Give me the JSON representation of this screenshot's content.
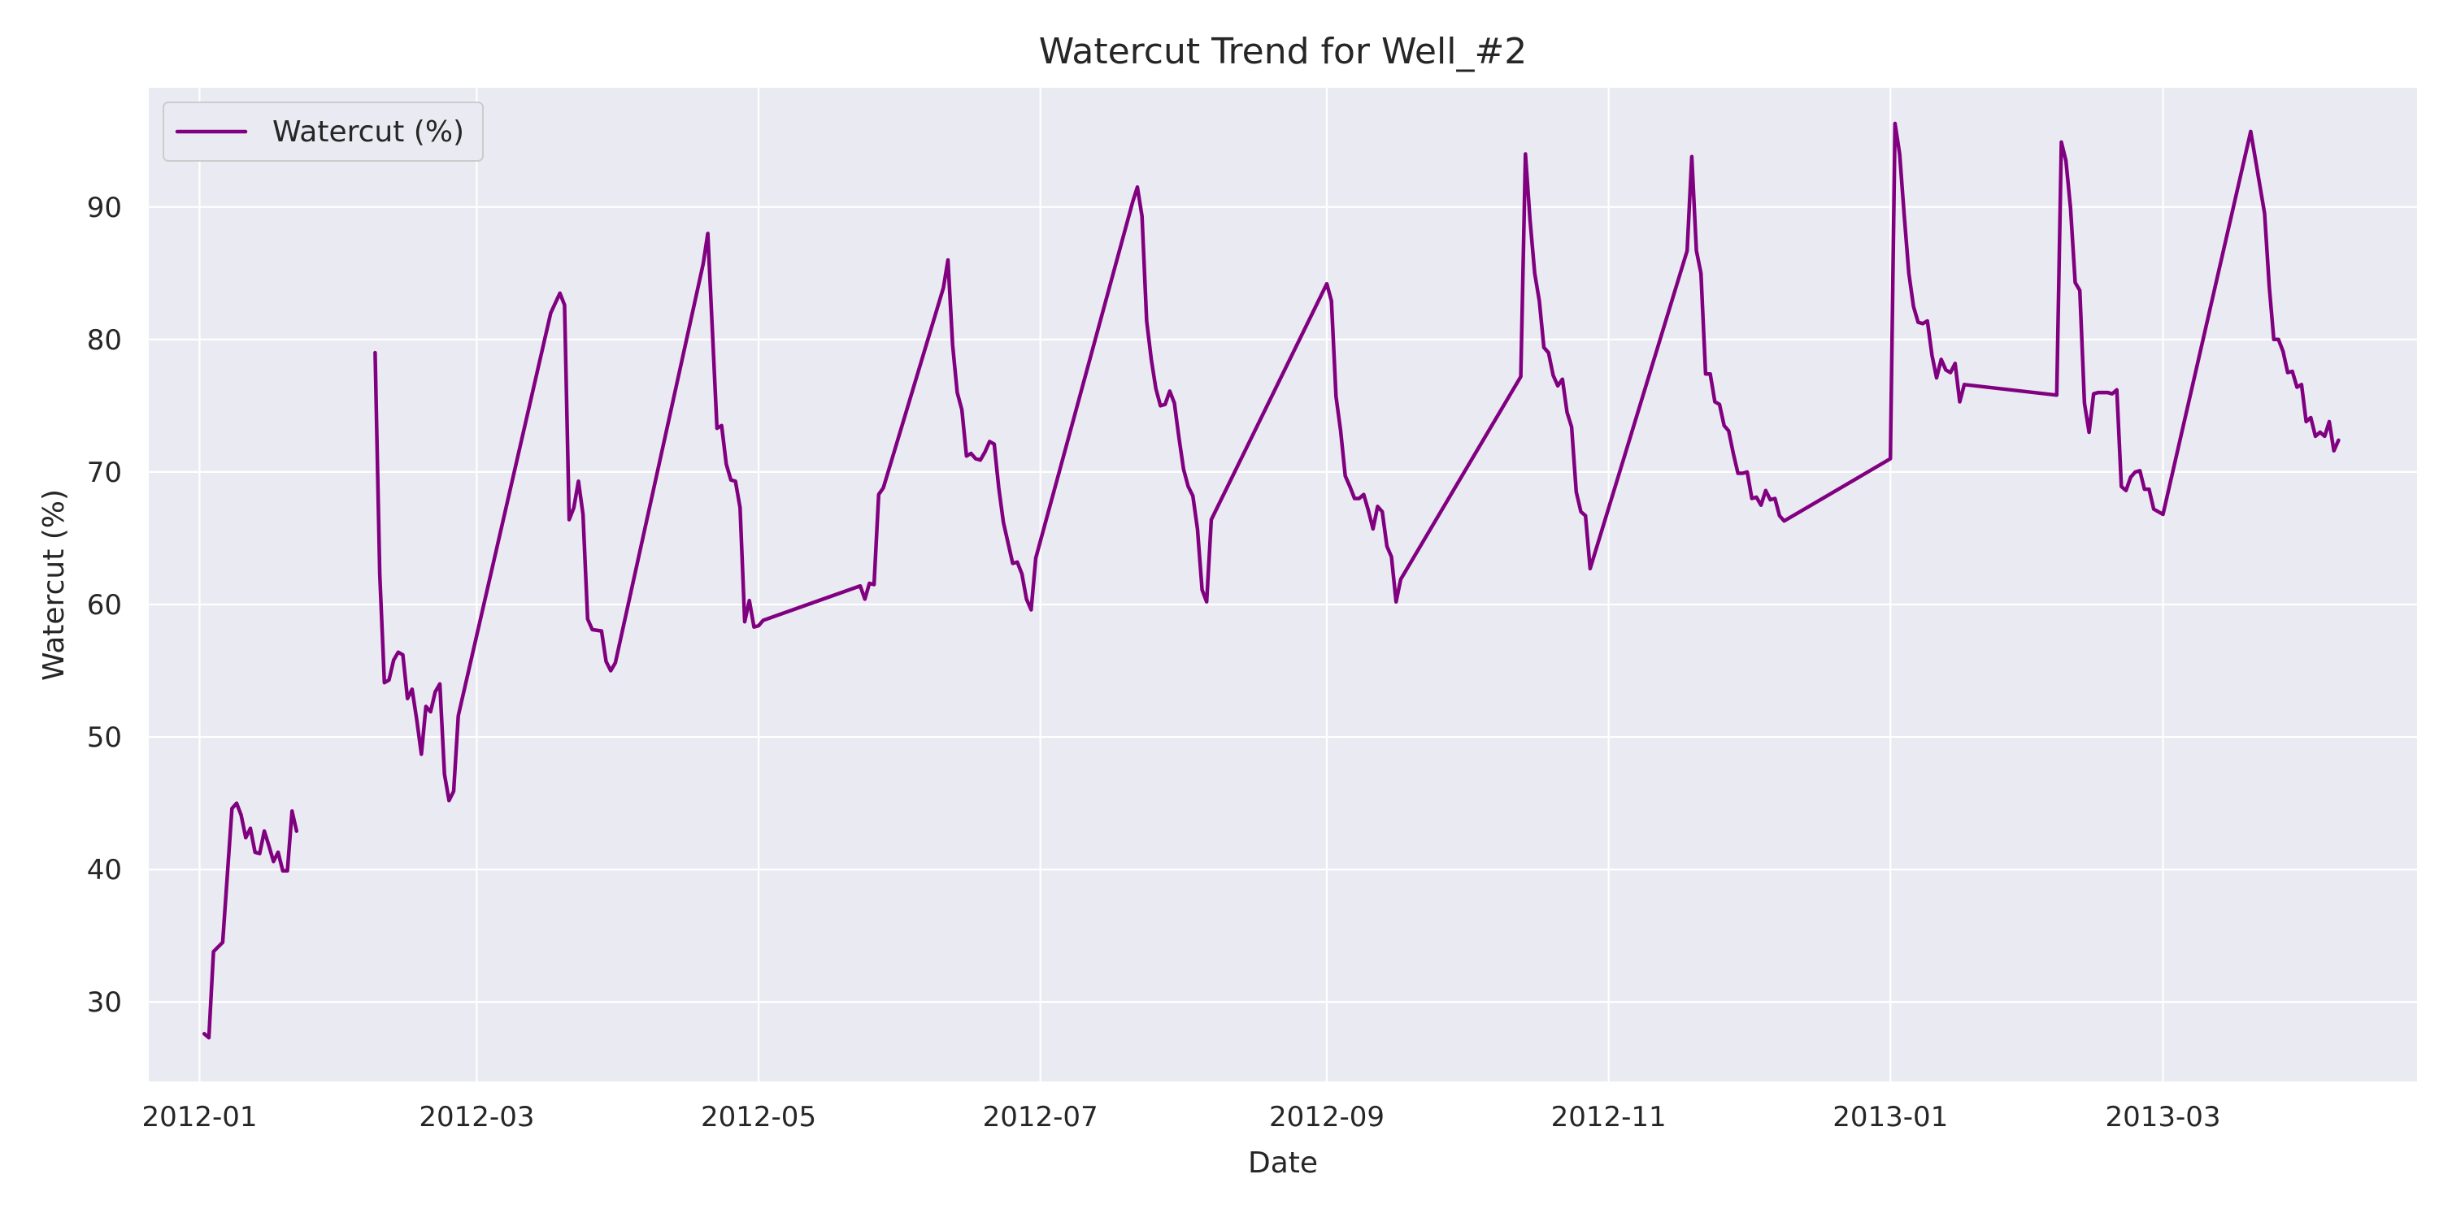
{
  "chart_data": {
    "type": "line",
    "title": "Watercut Trend for Well_#2",
    "xlabel": "Date",
    "ylabel": "Watercut (%)",
    "xlim": [
      "2011-12-21",
      "2013-04-25"
    ],
    "ylim": [
      24,
      99
    ],
    "x_ticks": [
      "2012-01-01",
      "2012-03-01",
      "2012-05-01",
      "2012-07-01",
      "2012-09-01",
      "2012-11-01",
      "2013-01-01",
      "2013-03-01"
    ],
    "x_tick_labels": [
      "2012-01",
      "2012-03",
      "2012-05",
      "2012-07",
      "2012-09",
      "2012-11",
      "2013-01",
      "2013-03"
    ],
    "y_ticks": [
      30,
      40,
      50,
      60,
      70,
      80,
      90
    ],
    "grid": true,
    "legend": "top-left",
    "colors": {
      "line": "#800080",
      "plot_bg": "#EAEAF2",
      "grid": "#FFFFFF"
    },
    "series": [
      {
        "name": "Watercut (%)",
        "segments": [
          [
            [
              "2012-01-02",
              27.6
            ],
            [
              "2012-01-03",
              27.3
            ],
            [
              "2012-01-04",
              33.8
            ],
            [
              "2012-01-06",
              34.5
            ],
            [
              "2012-01-08",
              44.6
            ],
            [
              "2012-01-09",
              45.0
            ],
            [
              "2012-01-10",
              44.1
            ],
            [
              "2012-01-11",
              42.4
            ],
            [
              "2012-01-12",
              43.1
            ],
            [
              "2012-01-13",
              41.3
            ],
            [
              "2012-01-14",
              41.2
            ],
            [
              "2012-01-15",
              42.9
            ],
            [
              "2012-01-16",
              41.8
            ],
            [
              "2012-01-17",
              40.6
            ],
            [
              "2012-01-18",
              41.3
            ],
            [
              "2012-01-19",
              39.9
            ],
            [
              "2012-01-20",
              39.9
            ],
            [
              "2012-01-21",
              44.4
            ],
            [
              "2012-01-22",
              42.9
            ]
          ],
          [
            [
              "2012-02-08",
              79.0
            ],
            [
              "2012-02-09",
              62.3
            ],
            [
              "2012-02-10",
              54.1
            ],
            [
              "2012-02-11",
              54.3
            ],
            [
              "2012-02-12",
              55.8
            ],
            [
              "2012-02-13",
              56.4
            ],
            [
              "2012-02-14",
              56.2
            ],
            [
              "2012-02-15",
              52.9
            ],
            [
              "2012-02-16",
              53.6
            ],
            [
              "2012-02-17",
              51.3
            ],
            [
              "2012-02-18",
              48.7
            ],
            [
              "2012-02-19",
              52.3
            ],
            [
              "2012-02-20",
              51.9
            ],
            [
              "2012-02-21",
              53.4
            ],
            [
              "2012-02-22",
              54.0
            ],
            [
              "2012-02-23",
              47.2
            ],
            [
              "2012-02-24",
              45.2
            ],
            [
              "2012-02-25",
              45.9
            ],
            [
              "2012-02-26",
              51.6
            ],
            [
              "2012-03-17",
              82.0
            ],
            [
              "2012-03-19",
              83.5
            ],
            [
              "2012-03-20",
              82.6
            ],
            [
              "2012-03-21",
              66.4
            ],
            [
              "2012-03-22",
              67.3
            ],
            [
              "2012-03-23",
              69.3
            ],
            [
              "2012-03-24",
              66.8
            ],
            [
              "2012-03-25",
              58.9
            ],
            [
              "2012-03-26",
              58.1
            ],
            [
              "2012-03-28",
              58.0
            ],
            [
              "2012-03-29",
              55.7
            ],
            [
              "2012-03-30",
              55.0
            ],
            [
              "2012-03-31",
              55.6
            ],
            [
              "2012-04-19",
              85.7
            ],
            [
              "2012-04-20",
              88.0
            ],
            [
              "2012-04-22",
              73.3
            ],
            [
              "2012-04-23",
              73.5
            ],
            [
              "2012-04-24",
              70.6
            ],
            [
              "2012-04-25",
              69.4
            ],
            [
              "2012-04-26",
              69.3
            ],
            [
              "2012-04-27",
              67.3
            ],
            [
              "2012-04-28",
              58.7
            ],
            [
              "2012-04-29",
              60.3
            ],
            [
              "2012-04-30",
              58.3
            ],
            [
              "2012-05-01",
              58.4
            ],
            [
              "2012-05-02",
              58.8
            ],
            [
              "2012-05-23",
              61.4
            ],
            [
              "2012-05-24",
              60.4
            ],
            [
              "2012-05-25",
              61.6
            ],
            [
              "2012-05-26",
              61.5
            ],
            [
              "2012-05-27",
              68.3
            ],
            [
              "2012-05-28",
              68.8
            ],
            [
              "2012-06-10",
              83.9
            ],
            [
              "2012-06-11",
              86.0
            ],
            [
              "2012-06-12",
              79.6
            ],
            [
              "2012-06-13",
              76.0
            ],
            [
              "2012-06-14",
              74.7
            ],
            [
              "2012-06-15",
              71.2
            ],
            [
              "2012-06-16",
              71.4
            ],
            [
              "2012-06-17",
              71.0
            ],
            [
              "2012-06-18",
              70.9
            ],
            [
              "2012-06-19",
              71.5
            ],
            [
              "2012-06-20",
              72.3
            ],
            [
              "2012-06-21",
              72.1
            ],
            [
              "2012-06-22",
              68.8
            ],
            [
              "2012-06-23",
              66.2
            ],
            [
              "2012-06-25",
              63.1
            ],
            [
              "2012-06-26",
              63.2
            ],
            [
              "2012-06-27",
              62.3
            ],
            [
              "2012-06-28",
              60.4
            ],
            [
              "2012-06-29",
              59.6
            ],
            [
              "2012-06-30",
              63.5
            ],
            [
              "2012-07-21",
              90.4
            ],
            [
              "2012-07-22",
              91.5
            ],
            [
              "2012-07-23",
              89.3
            ],
            [
              "2012-07-24",
              81.4
            ],
            [
              "2012-07-25",
              78.5
            ],
            [
              "2012-07-26",
              76.3
            ],
            [
              "2012-07-27",
              75.0
            ],
            [
              "2012-07-28",
              75.1
            ],
            [
              "2012-07-29",
              76.1
            ],
            [
              "2012-07-30",
              75.2
            ],
            [
              "2012-07-31",
              72.6
            ],
            [
              "2012-08-01",
              70.2
            ],
            [
              "2012-08-02",
              68.9
            ],
            [
              "2012-08-03",
              68.2
            ],
            [
              "2012-08-04",
              65.7
            ],
            [
              "2012-08-05",
              61.1
            ],
            [
              "2012-08-06",
              60.2
            ],
            [
              "2012-08-07",
              66.4
            ],
            [
              "2012-09-01",
              84.2
            ],
            [
              "2012-09-02",
              82.9
            ],
            [
              "2012-09-03",
              75.7
            ],
            [
              "2012-09-04",
              73.1
            ],
            [
              "2012-09-05",
              69.7
            ],
            [
              "2012-09-06",
              68.9
            ],
            [
              "2012-09-07",
              68.0
            ],
            [
              "2012-09-08",
              68.0
            ],
            [
              "2012-09-09",
              68.3
            ],
            [
              "2012-09-10",
              67.1
            ],
            [
              "2012-09-11",
              65.7
            ],
            [
              "2012-09-12",
              67.4
            ],
            [
              "2012-09-13",
              67.0
            ],
            [
              "2012-09-14",
              64.4
            ],
            [
              "2012-09-15",
              63.6
            ],
            [
              "2012-09-16",
              60.2
            ],
            [
              "2012-09-17",
              61.9
            ],
            [
              "2012-10-13",
              77.2
            ],
            [
              "2012-10-14",
              94.0
            ],
            [
              "2012-10-15",
              89.0
            ],
            [
              "2012-10-16",
              85.0
            ],
            [
              "2012-10-17",
              82.9
            ],
            [
              "2012-10-18",
              79.4
            ],
            [
              "2012-10-19",
              79.0
            ],
            [
              "2012-10-20",
              77.3
            ],
            [
              "2012-10-21",
              76.5
            ],
            [
              "2012-10-22",
              77.0
            ],
            [
              "2012-10-23",
              74.5
            ],
            [
              "2012-10-24",
              73.4
            ],
            [
              "2012-10-25",
              68.5
            ],
            [
              "2012-10-26",
              67.0
            ],
            [
              "2012-10-27",
              66.7
            ],
            [
              "2012-10-28",
              62.7
            ],
            [
              "2012-11-18",
              86.7
            ],
            [
              "2012-11-19",
              93.8
            ],
            [
              "2012-11-20",
              86.7
            ],
            [
              "2012-11-21",
              85.0
            ],
            [
              "2012-11-22",
              77.4
            ],
            [
              "2012-11-23",
              77.4
            ],
            [
              "2012-11-24",
              75.3
            ],
            [
              "2012-11-25",
              75.1
            ],
            [
              "2012-11-26",
              73.5
            ],
            [
              "2012-11-27",
              73.1
            ],
            [
              "2012-11-28",
              71.4
            ],
            [
              "2012-11-29",
              69.9
            ],
            [
              "2012-11-30",
              69.9
            ],
            [
              "2012-12-01",
              70.0
            ],
            [
              "2012-12-02",
              68.0
            ],
            [
              "2012-12-03",
              68.1
            ],
            [
              "2012-12-04",
              67.5
            ],
            [
              "2012-12-05",
              68.6
            ],
            [
              "2012-12-06",
              67.9
            ],
            [
              "2012-12-07",
              68.0
            ],
            [
              "2012-12-08",
              66.7
            ],
            [
              "2012-12-09",
              66.3
            ],
            [
              "2013-01-01",
              71.0
            ],
            [
              "2013-01-02",
              96.3
            ],
            [
              "2013-01-03",
              94.0
            ],
            [
              "2013-01-04",
              89.3
            ],
            [
              "2013-01-05",
              85.0
            ],
            [
              "2013-01-06",
              82.5
            ],
            [
              "2013-01-07",
              81.3
            ],
            [
              "2013-01-08",
              81.2
            ],
            [
              "2013-01-09",
              81.4
            ],
            [
              "2013-01-10",
              78.8
            ],
            [
              "2013-01-11",
              77.1
            ],
            [
              "2013-01-12",
              78.5
            ],
            [
              "2013-01-13",
              77.7
            ],
            [
              "2013-01-14",
              77.5
            ],
            [
              "2013-01-15",
              78.2
            ],
            [
              "2013-01-16",
              75.3
            ],
            [
              "2013-01-17",
              76.6
            ],
            [
              "2013-02-06",
              75.8
            ],
            [
              "2013-02-07",
              94.9
            ],
            [
              "2013-02-08",
              93.5
            ],
            [
              "2013-02-09",
              89.9
            ],
            [
              "2013-02-10",
              84.3
            ],
            [
              "2013-02-11",
              83.7
            ],
            [
              "2013-02-12",
              75.2
            ],
            [
              "2013-02-13",
              73.0
            ],
            [
              "2013-02-14",
              75.9
            ],
            [
              "2013-02-15",
              76.0
            ],
            [
              "2013-02-16",
              76.0
            ],
            [
              "2013-02-17",
              76.0
            ],
            [
              "2013-02-18",
              75.9
            ],
            [
              "2013-02-19",
              76.2
            ],
            [
              "2013-02-20",
              68.9
            ],
            [
              "2013-02-21",
              68.6
            ],
            [
              "2013-02-22",
              69.6
            ],
            [
              "2013-02-23",
              70.0
            ],
            [
              "2013-02-24",
              70.1
            ],
            [
              "2013-02-25",
              68.7
            ],
            [
              "2013-02-26",
              68.7
            ],
            [
              "2013-02-27",
              67.2
            ],
            [
              "2013-02-28",
              67.0
            ],
            [
              "2013-03-01",
              66.8
            ],
            [
              "2013-03-20",
              95.7
            ],
            [
              "2013-03-23",
              89.5
            ],
            [
              "2013-03-24",
              84.0
            ],
            [
              "2013-03-25",
              80.0
            ],
            [
              "2013-03-26",
              80.0
            ],
            [
              "2013-03-27",
              79.1
            ],
            [
              "2013-03-28",
              77.5
            ],
            [
              "2013-03-29",
              77.6
            ],
            [
              "2013-03-30",
              76.4
            ],
            [
              "2013-03-31",
              76.6
            ],
            [
              "2013-04-01",
              73.8
            ],
            [
              "2013-04-02",
              74.1
            ],
            [
              "2013-04-03",
              72.7
            ],
            [
              "2013-04-04",
              73.0
            ],
            [
              "2013-04-05",
              72.7
            ],
            [
              "2013-04-06",
              73.8
            ],
            [
              "2013-04-07",
              71.6
            ],
            [
              "2013-04-08",
              72.4
            ]
          ]
        ]
      }
    ]
  }
}
